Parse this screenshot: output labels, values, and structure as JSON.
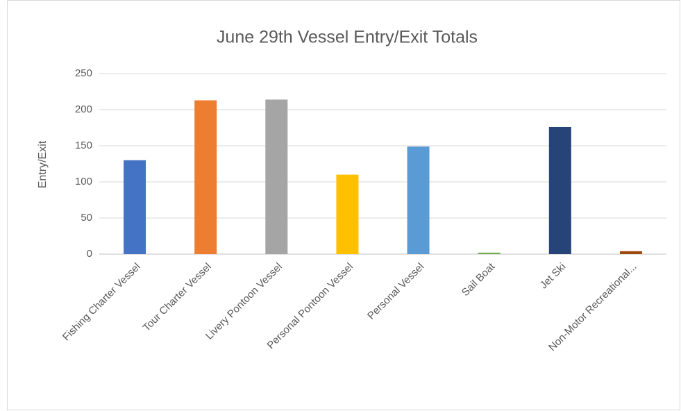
{
  "chart_data": {
    "type": "bar",
    "title": "June 29th Vessel Entry/Exit Totals",
    "y_label": "Entry/Exit",
    "categories": [
      "Fishing Charter Vessel",
      "Tour Charter Vessel",
      "Livery Pontoon Vessel",
      "Personal Pontoon Vessel",
      "Personal Vessel",
      "Sail Boat",
      "Jet Ski",
      "Non-Motor Recreational..."
    ],
    "values": [
      130,
      213,
      214,
      110,
      149,
      2,
      176,
      4
    ],
    "colors": [
      "#4472c4",
      "#ed7d31",
      "#a5a5a5",
      "#ffc000",
      "#5b9bd5",
      "#70ad47",
      "#264478",
      "#9e480e"
    ],
    "ylim": [
      0,
      250
    ],
    "yticks": [
      0,
      50,
      100,
      150,
      200,
      250
    ],
    "grid": true
  }
}
